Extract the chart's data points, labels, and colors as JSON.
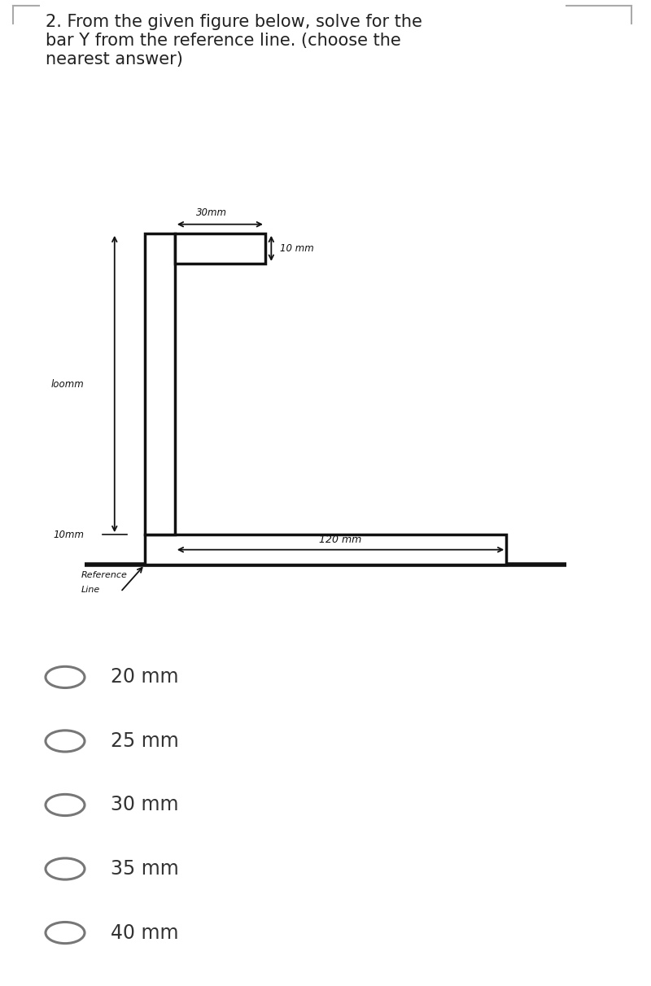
{
  "title_text": "2. From the given figure below, solve for the\nbar Y from the reference line. (choose the\nnearest answer)",
  "title_fontsize": 15,
  "bg_color": "#ffffff",
  "figure_bg": "#cccccc",
  "choices": [
    "20 mm",
    "25 mm",
    "30 mm",
    "35 mm",
    "40 mm"
  ],
  "choice_fontsize": 17,
  "lw": 2.5,
  "shape_color": "#111111",
  "dim_10mm_top": "10 mm",
  "dim_30mm": "30mm",
  "dim_100mm": "loomm",
  "dim_10mm_bot": "10mm",
  "dim_120mm": "120 mm",
  "ref_label1": "Reference",
  "ref_label2": "Line",
  "xlim": [
    -22,
    142
  ],
  "ylim": [
    -22,
    122
  ]
}
